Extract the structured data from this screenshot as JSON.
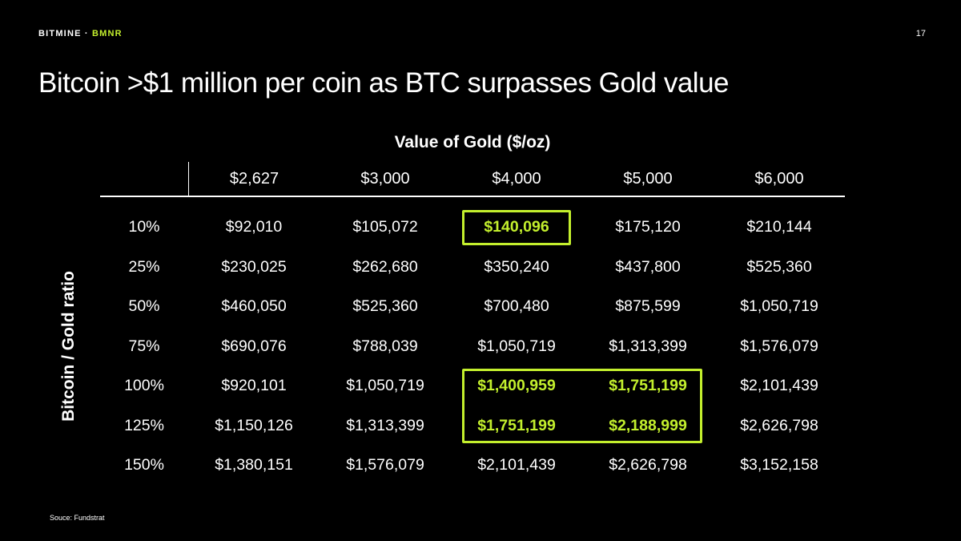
{
  "colors": {
    "background": "#000000",
    "text": "#ffffff",
    "accent": "#c3ef2d"
  },
  "header": {
    "brand": "BITMINE",
    "separator": "·",
    "ticker": "BMNR",
    "page_number": "17"
  },
  "title": "Bitcoin >$1 million per coin as BTC surpasses Gold value",
  "chart_data": {
    "type": "table",
    "title": "Value of Gold ($/oz)",
    "row_axis_label": "Bitcoin / Gold ratio",
    "columns": [
      "$2,627",
      "$3,000",
      "$4,000",
      "$5,000",
      "$6,000"
    ],
    "rows": [
      {
        "label": "10%",
        "values": [
          "$92,010",
          "$105,072",
          "$140,096",
          "$175,120",
          "$210,144"
        ]
      },
      {
        "label": "25%",
        "values": [
          "$230,025",
          "$262,680",
          "$350,240",
          "$437,800",
          "$525,360"
        ]
      },
      {
        "label": "50%",
        "values": [
          "$460,050",
          "$525,360",
          "$700,480",
          "$875,599",
          "$1,050,719"
        ]
      },
      {
        "label": "75%",
        "values": [
          "$690,076",
          "$788,039",
          "$1,050,719",
          "$1,313,399",
          "$1,576,079"
        ]
      },
      {
        "label": "100%",
        "values": [
          "$920,101",
          "$1,050,719",
          "$1,400,959",
          "$1,751,199",
          "$2,101,439"
        ]
      },
      {
        "label": "125%",
        "values": [
          "$1,150,126",
          "$1,313,399",
          "$1,751,199",
          "$2,188,999",
          "$2,626,798"
        ]
      },
      {
        "label": "150%",
        "values": [
          "$1,380,151",
          "$1,576,079",
          "$2,101,439",
          "$2,626,798",
          "$3,152,158"
        ]
      }
    ],
    "highlights": [
      {
        "row_start": 1,
        "row_end": 1,
        "col_start": 3,
        "col_end": 3
      },
      {
        "row_start": 5,
        "row_end": 6,
        "col_start": 3,
        "col_end": 4
      }
    ]
  },
  "footer": {
    "source": "Souce: Fundstrat"
  }
}
